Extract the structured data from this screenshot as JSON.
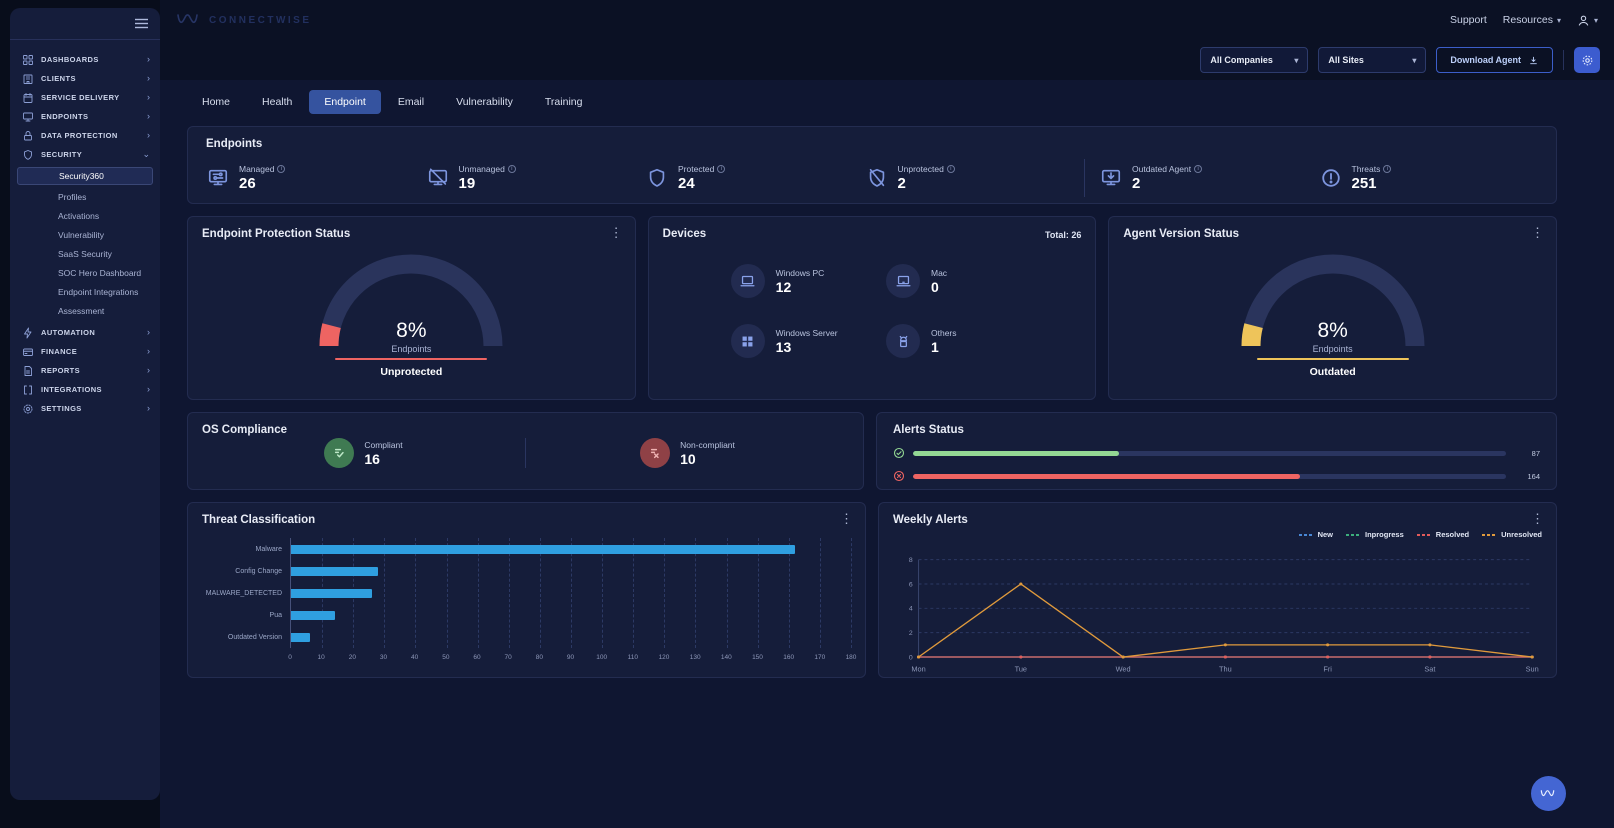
{
  "icons": {
    "kebab": "⋮",
    "chevron_right": "›",
    "chevron_down": "⌄",
    "caret": "▾",
    "info": "i"
  },
  "header": {
    "brand": "CONNECTWISE",
    "support_label": "Support",
    "resources_label": "Resources"
  },
  "sidebar": {
    "main_items_top": [
      {
        "label": "DASHBOARDS",
        "icon": "dashboards-icon",
        "expanded": false
      },
      {
        "label": "CLIENTS",
        "icon": "clients-icon",
        "expanded": false
      },
      {
        "label": "SERVICE DELIVERY",
        "icon": "service-delivery-icon",
        "expanded": false
      },
      {
        "label": "ENDPOINTS",
        "icon": "endpoints-icon",
        "expanded": false
      },
      {
        "label": "DATA PROTECTION",
        "icon": "data-protection-icon",
        "expanded": false
      },
      {
        "label": "SECURITY",
        "icon": "security-icon",
        "expanded": true
      }
    ],
    "security_submenu": [
      {
        "label": "Security360",
        "active": true
      },
      {
        "label": "Profiles",
        "active": false
      },
      {
        "label": "Activations",
        "active": false
      },
      {
        "label": "Vulnerability",
        "active": false
      },
      {
        "label": "SaaS Security",
        "active": false
      },
      {
        "label": "SOC Hero Dashboard",
        "active": false
      },
      {
        "label": "Endpoint Integrations",
        "active": false
      },
      {
        "label": "Assessment",
        "active": false
      }
    ],
    "main_items_bottom": [
      {
        "label": "AUTOMATION",
        "icon": "automation-icon",
        "expanded": false
      },
      {
        "label": "FINANCE",
        "icon": "finance-icon",
        "expanded": false
      },
      {
        "label": "REPORTS",
        "icon": "reports-icon",
        "expanded": false
      },
      {
        "label": "INTEGRATIONS",
        "icon": "integrations-icon",
        "expanded": false
      },
      {
        "label": "SETTINGS",
        "icon": "settings-icon",
        "expanded": false
      }
    ]
  },
  "filters": {
    "companies": "All Companies",
    "sites": "All Sites",
    "download_agent_label": "Download Agent"
  },
  "tabs": {
    "items": [
      "Home",
      "Health",
      "Endpoint",
      "Email",
      "Vulnerability",
      "Training"
    ],
    "active": "Endpoint"
  },
  "endpoints_summary": {
    "title": "Endpoints",
    "stats": [
      {
        "label": "Managed",
        "value": "26",
        "icon": "managed-endpoint-icon"
      },
      {
        "label": "Unmanaged",
        "value": "19",
        "icon": "unmanaged-endpoint-icon"
      },
      {
        "label": "Protected",
        "value": "24",
        "icon": "protected-shield-icon"
      },
      {
        "label": "Unprotected",
        "value": "2",
        "icon": "unprotected-shield-icon"
      },
      {
        "label": "Outdated Agent",
        "value": "2",
        "icon": "outdated-agent-icon"
      },
      {
        "label": "Threats",
        "value": "251",
        "icon": "threats-icon"
      }
    ]
  },
  "protection_card": {
    "title": "Endpoint Protection Status",
    "percent": "8%",
    "center_label": "Endpoints",
    "status_label": "Unprotected",
    "accent": "#ee6462",
    "value_pct": 8
  },
  "devices_card": {
    "title": "Devices",
    "total_label": "Total: 26",
    "items": [
      {
        "label": "Windows PC",
        "value": "12",
        "icon": "windows-pc-icon"
      },
      {
        "label": "Mac",
        "value": "0",
        "icon": "mac-icon"
      },
      {
        "label": "Windows Server",
        "value": "13",
        "icon": "windows-server-icon"
      },
      {
        "label": "Others",
        "value": "1",
        "icon": "others-device-icon"
      }
    ]
  },
  "agent_card": {
    "title": "Agent Version Status",
    "percent": "8%",
    "center_label": "Endpoints",
    "status_label": "Outdated",
    "accent": "#eec45a",
    "value_pct": 8
  },
  "os_compliance": {
    "title": "OS Compliance",
    "items": [
      {
        "label": "Compliant",
        "value": "16",
        "icon": "compliant-icon",
        "circle_color": "#3f7a52",
        "glyph_color": "#bfe9c9"
      },
      {
        "label": "Non-compliant",
        "value": "10",
        "icon": "non-compliant-icon",
        "circle_color": "#8f4146",
        "glyph_color": "#f0b3b3"
      }
    ]
  },
  "alerts_status": {
    "title": "Alerts Status",
    "max": 251,
    "bars": [
      {
        "icon": "resolved-check-icon",
        "value": 87,
        "color": "#93d793"
      },
      {
        "icon": "unresolved-cross-icon",
        "value": 164,
        "color": "#ee6462"
      }
    ]
  },
  "chart_data": [
    {
      "type": "bar",
      "title": "Threat Classification",
      "orientation": "horizontal",
      "categories": [
        "Malware",
        "Config Change",
        "MALWARE_DETECTED",
        "Pua",
        "Outdated Version"
      ],
      "values": [
        162,
        28,
        26,
        14,
        6
      ],
      "bar_color": "#2f9fe0",
      "xlabel": "",
      "ylabel": "",
      "xlim": [
        0,
        180
      ],
      "x_ticks": [
        0,
        10,
        20,
        30,
        40,
        50,
        60,
        70,
        80,
        90,
        100,
        110,
        120,
        130,
        140,
        150,
        160,
        170,
        180
      ],
      "grid": "dashed-vertical"
    },
    {
      "type": "line",
      "title": "Weekly Alerts",
      "x": [
        "Mon",
        "Tue",
        "Wed",
        "Thu",
        "Fri",
        "Sat",
        "Sun"
      ],
      "series": [
        {
          "name": "New",
          "color": "#4887d5",
          "values": [
            0,
            0,
            0,
            0,
            0,
            0,
            0
          ]
        },
        {
          "name": "Inprogress",
          "color": "#3cae7c",
          "values": [
            0,
            0,
            0,
            0,
            0,
            0,
            0
          ]
        },
        {
          "name": "Resolved",
          "color": "#e25b5b",
          "values": [
            0,
            0,
            0,
            0,
            0,
            0,
            0
          ]
        },
        {
          "name": "Unresolved",
          "color": "#e09a3c",
          "values": [
            0,
            6,
            0,
            1,
            1,
            1,
            0
          ]
        }
      ],
      "ylim": [
        0,
        8
      ],
      "y_ticks": [
        0,
        2,
        4,
        6,
        8
      ],
      "legend_position": "top-right",
      "grid": "dashed-horizontal"
    }
  ]
}
